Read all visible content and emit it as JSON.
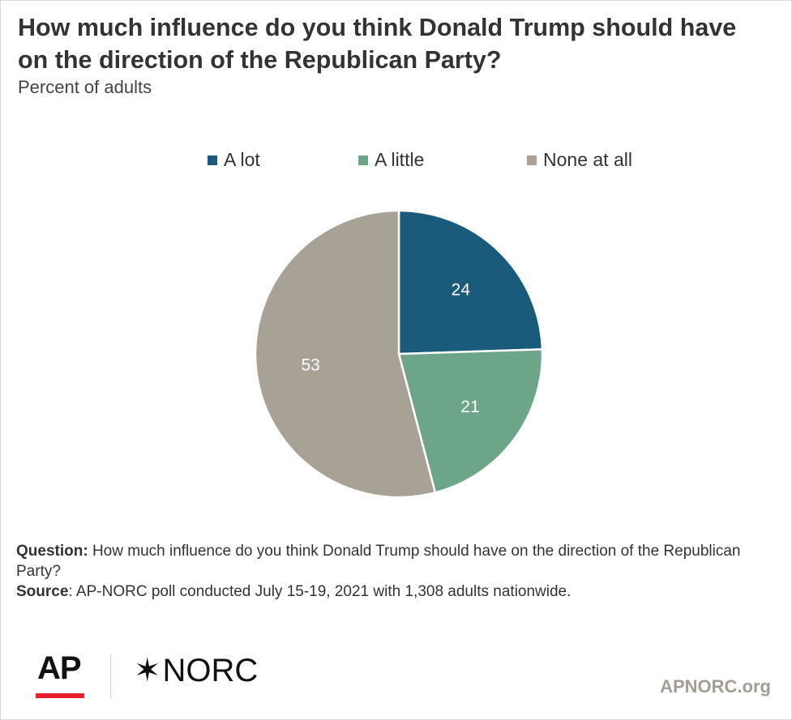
{
  "title": "How much influence do you think Donald Trump should have on the direction of the Republican Party?",
  "subtitle": "Percent of adults",
  "chart_data": {
    "type": "pie",
    "title": "How much influence do you think Donald Trump should have on the direction of the Republican Party?",
    "subtitle": "Percent of adults",
    "legend_position": "top",
    "slices": [
      {
        "label": "A lot",
        "value": 24,
        "color": "#1a5b7c"
      },
      {
        "label": "A little",
        "value": 21,
        "color": "#6da589"
      },
      {
        "label": "None at all",
        "value": 53,
        "color": "#a7a196"
      }
    ],
    "data_label_color": "#ffffff",
    "slice_border_color": "#ffffff"
  },
  "notes": {
    "question_label": "Question:",
    "question_text": " How much influence do you think Donald Trump should have on the direction of the Republican Party?",
    "source_label": "Source",
    "source_text": ": AP-NORC poll conducted July 15-19, 2021 with 1,308 adults nationwide."
  },
  "branding": {
    "ap_logo": "AP",
    "norc_star": "✶",
    "norc_logo": "NORC",
    "site": "APNORC.org",
    "ap_accent_color": "#e8222c"
  }
}
